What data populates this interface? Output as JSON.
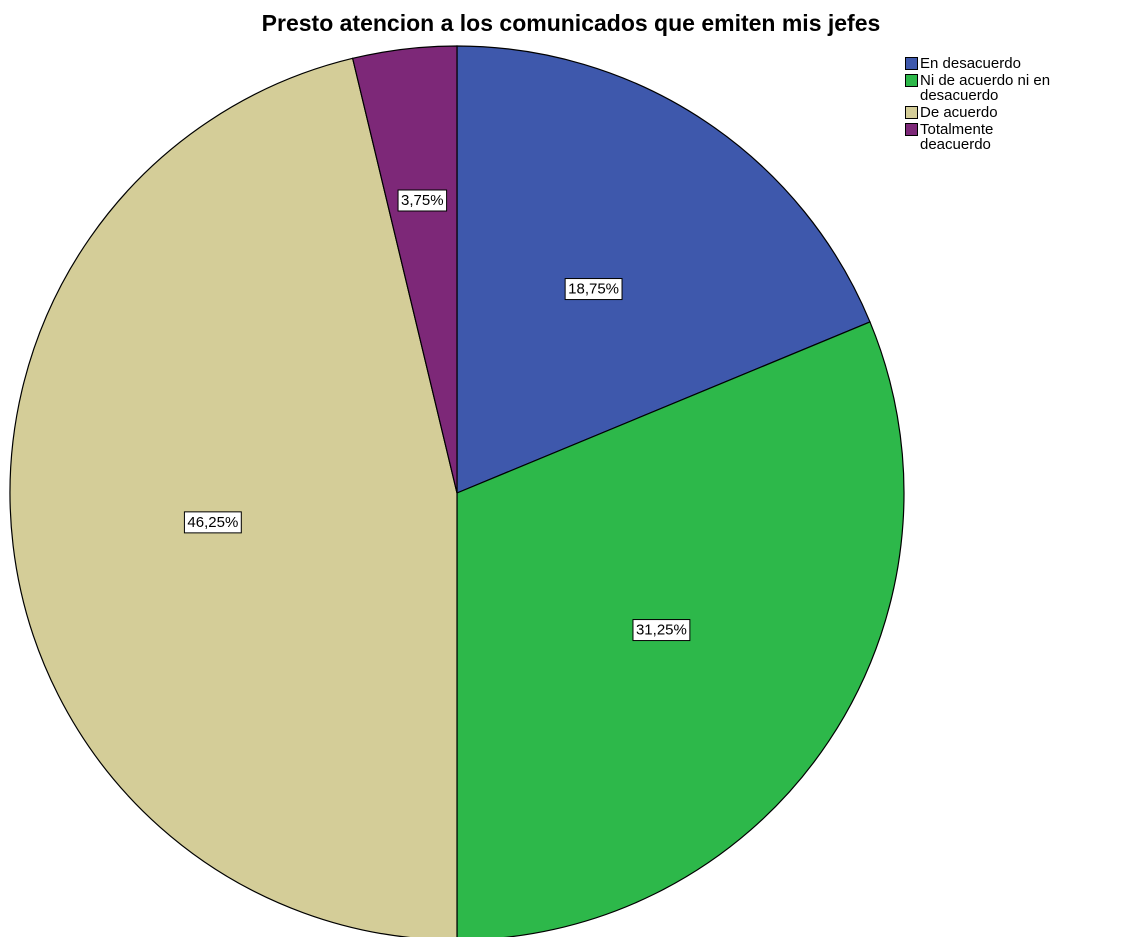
{
  "chart_data": {
    "type": "pie",
    "title": "Presto atencion a los comunicados que emiten mis jefes",
    "categories": [
      "En desacuerdo",
      "Ni de acuerdo ni en desacuerdo",
      "De acuerdo",
      "Totalmente deacuerdo"
    ],
    "values": [
      18.75,
      31.25,
      46.25,
      3.75
    ],
    "value_labels": [
      "18,75%",
      "31,25%",
      "46,25%",
      "3,75%"
    ],
    "colors": [
      "#3e58ac",
      "#2db84a",
      "#d4cd98",
      "#7d2878"
    ],
    "legend": "top-right"
  }
}
